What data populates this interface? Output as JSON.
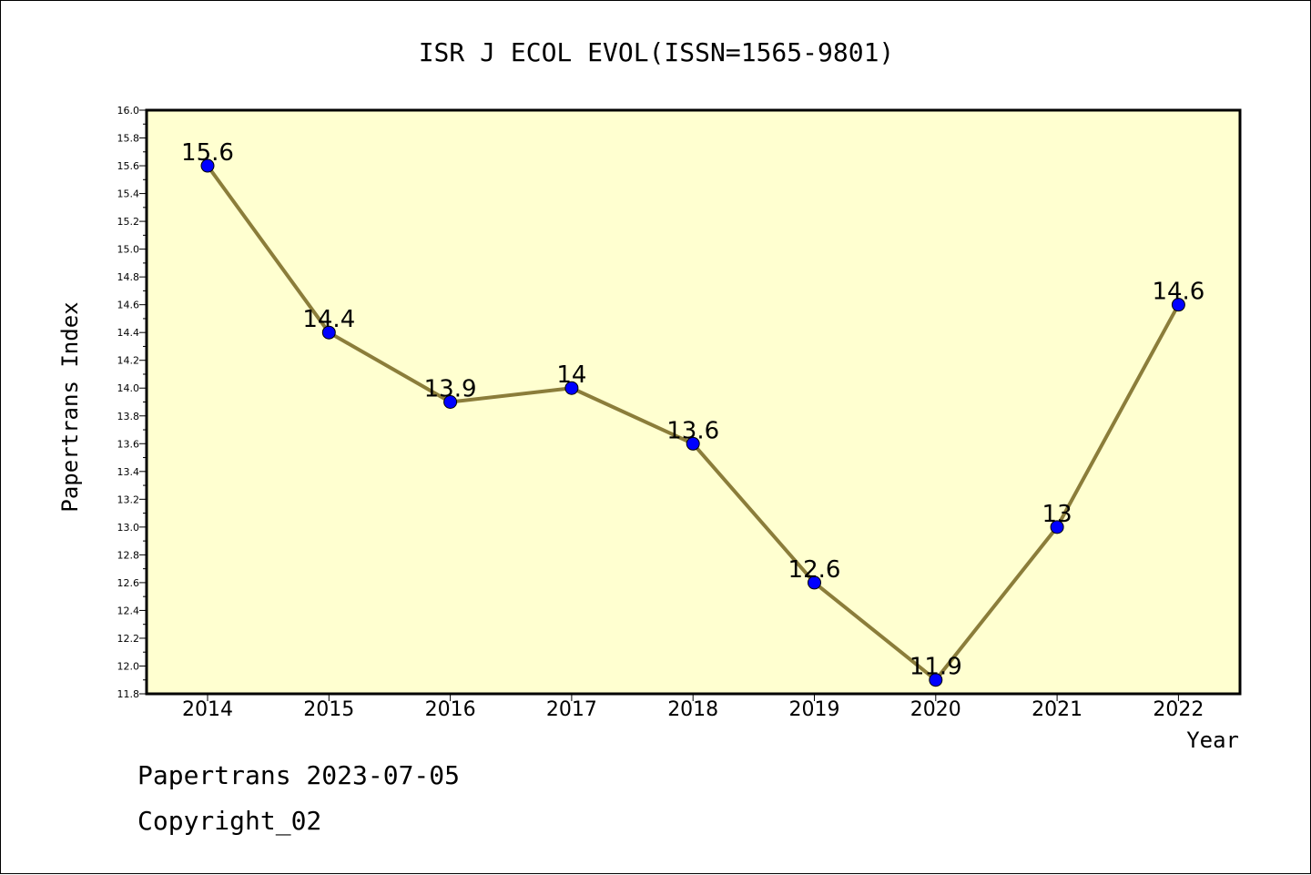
{
  "chart_data": {
    "type": "line",
    "title": "ISR J ECOL EVOL(ISSN=1565-9801)",
    "xlabel": "Year",
    "ylabel": "Papertrans Index",
    "categories": [
      "2014",
      "2015",
      "2016",
      "2017",
      "2018",
      "2019",
      "2020",
      "2021",
      "2022"
    ],
    "values": [
      15.6,
      14.4,
      13.9,
      14.0,
      13.6,
      12.6,
      11.9,
      13.0,
      14.6
    ],
    "data_labels": [
      "15.6",
      "14.4",
      "13.9",
      "14",
      "13.6",
      "12.6",
      "11.9",
      "13",
      "14.6"
    ],
    "ylim": [
      11.8,
      16.0
    ],
    "yticks": [
      "11.8",
      "12.0",
      "12.2",
      "12.4",
      "12.6",
      "12.8",
      "13.0",
      "13.2",
      "13.4",
      "13.6",
      "13.8",
      "14.0",
      "14.2",
      "14.4",
      "14.6",
      "14.8",
      "15.0",
      "15.2",
      "15.4",
      "15.6",
      "15.8",
      "16.0"
    ],
    "grid": false,
    "legend": "none",
    "colors": {
      "plot_background": "#FFFFD0",
      "line": "#8B7D3A",
      "marker": "#0000FF"
    }
  },
  "footer": {
    "date_line": "Papertrans 2023-07-05",
    "copyright": "Copyright_02"
  }
}
